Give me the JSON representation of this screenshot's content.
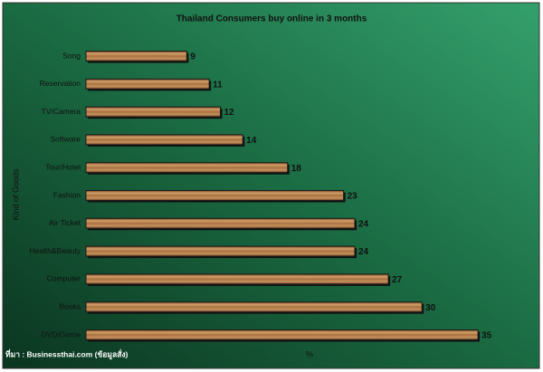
{
  "chart_data": {
    "type": "bar",
    "orientation": "horizontal",
    "title": "Thailand Consumers buy online in 3 months",
    "y_label": "Kind of Goods",
    "x_label": "%",
    "source": "ที่มา : Businessthai.com (ข้อมูลสั่ง)",
    "categories": [
      "Song",
      "Reservation",
      "TV/Camera",
      "Software",
      "Tour/Hotel",
      "Fashion",
      "Air Ticket",
      "Health&Beauty",
      "Computer",
      "Books",
      "DVD/Game"
    ],
    "values": [
      9,
      11,
      12,
      14,
      18,
      23,
      24,
      24,
      27,
      30,
      35
    ],
    "color": "#b07a45",
    "xlim": [
      0,
      40
    ]
  }
}
